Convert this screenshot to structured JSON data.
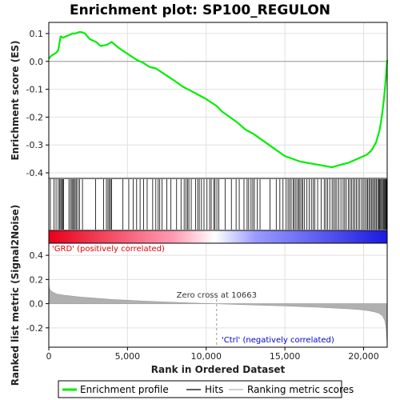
{
  "chart_data": {
    "type": "line",
    "title": "Enrichment plot: SP100_REGULON",
    "x_max": 21500,
    "xlabel": "Rank in Ordered Dataset",
    "x_ticks": [
      0,
      5000,
      10000,
      15000,
      20000
    ],
    "x_tick_labels": [
      "0",
      "5,000",
      "10,000",
      "15,000",
      "20,000"
    ],
    "top_panel": {
      "ylabel": "Enrichment score (ES)",
      "ylim": [
        -0.42,
        0.14
      ],
      "y_ticks": [
        0.1,
        0.0,
        -0.1,
        -0.2,
        -0.3,
        -0.4
      ],
      "y_tick_labels": [
        "0.1",
        "0.0",
        "-0.1",
        "-0.2",
        "-0.3",
        "-0.4"
      ],
      "series": [
        {
          "name": "Enrichment profile",
          "x": [
            0,
            150,
            300,
            450,
            600,
            750,
            900,
            1100,
            1300,
            1500,
            1700,
            1900,
            2100,
            2300,
            2600,
            3000,
            3300,
            3700,
            4000,
            4400,
            4800,
            5200,
            5600,
            6000,
            6400,
            6800,
            7200,
            7600,
            8000,
            8500,
            9000,
            9500,
            10000,
            10663,
            11000,
            11500,
            12000,
            12500,
            13000,
            13500,
            14000,
            14500,
            15000,
            15500,
            16000,
            16500,
            17000,
            17500,
            18000,
            18300,
            18600,
            19000,
            19400,
            19800,
            20200,
            20500,
            20800,
            21000,
            21100,
            21200,
            21300,
            21400,
            21450,
            21500
          ],
          "y": [
            0.01,
            0.02,
            0.025,
            0.03,
            0.04,
            0.09,
            0.085,
            0.09,
            0.095,
            0.1,
            0.1,
            0.105,
            0.105,
            0.1,
            0.08,
            0.07,
            0.055,
            0.06,
            0.07,
            0.05,
            0.035,
            0.02,
            0.005,
            -0.005,
            -0.02,
            -0.025,
            -0.04,
            -0.055,
            -0.07,
            -0.09,
            -0.105,
            -0.12,
            -0.135,
            -0.16,
            -0.18,
            -0.2,
            -0.22,
            -0.245,
            -0.26,
            -0.28,
            -0.3,
            -0.32,
            -0.34,
            -0.35,
            -0.36,
            -0.365,
            -0.37,
            -0.375,
            -0.38,
            -0.375,
            -0.37,
            -0.365,
            -0.355,
            -0.345,
            -0.335,
            -0.32,
            -0.29,
            -0.25,
            -0.22,
            -0.18,
            -0.13,
            -0.07,
            -0.03,
            0.005
          ]
        }
      ]
    },
    "hits_panel": {
      "hit_ranks": [
        100,
        330,
        460,
        600,
        690,
        760,
        820,
        880,
        940,
        1280,
        1380,
        1470,
        1530,
        1610,
        1680,
        1750,
        1860,
        1960,
        2140,
        2970,
        3480,
        3660,
        3760,
        3850,
        3920,
        3990,
        4710,
        5080,
        5360,
        5580,
        5800,
        6020,
        6250,
        6600,
        6800,
        6950,
        7050,
        7200,
        7500,
        7760,
        8120,
        8400,
        8600,
        8720,
        8820,
        8900,
        9050,
        9320,
        9460,
        9560,
        9700,
        9860,
        10050,
        10220,
        10320,
        10480,
        10560,
        10680,
        10800,
        11200,
        11600,
        11900,
        12100,
        12400,
        12600,
        12700,
        12850,
        12960,
        13060,
        13250,
        13420,
        14050,
        14450,
        14680,
        14880,
        15080,
        15200,
        15300,
        15400,
        15520,
        15600,
        15700,
        15800,
        15880,
        15960,
        16060,
        16140,
        16250,
        16400,
        16540,
        16680,
        16800,
        16900,
        17080,
        17300,
        17500,
        17600,
        17720,
        17850,
        18000,
        18100,
        18200,
        18300,
        18420,
        18560,
        18700,
        18800,
        18900,
        19040,
        19140,
        19240,
        19340,
        19440,
        19540,
        19660,
        19760,
        19880,
        19980,
        20080,
        20180,
        20260,
        20340,
        20420,
        20500,
        20580,
        20660,
        20740,
        20820,
        20900,
        20960,
        21020,
        21080,
        21140,
        21200,
        21260,
        21310,
        21360,
        21410,
        21450,
        21480
      ],
      "color_scale": [
        "#e8001a",
        "#ff9cb4",
        "#ffffff",
        "#9b9bff",
        "#1a1ae0"
      ]
    },
    "bottom_panel": {
      "ylabel": "Ranked list metric (Signal2Noise)",
      "ylim": [
        -0.36,
        0.5
      ],
      "y_ticks": [
        0.4,
        0.2,
        0.0,
        -0.2
      ],
      "y_tick_labels": [
        "0.4",
        "0.2",
        "0.0",
        "-0.2"
      ],
      "metric_x": [
        0,
        30,
        100,
        250,
        500,
        1000,
        2000,
        3000,
        4000,
        5000,
        6000,
        7000,
        8000,
        9000,
        10000,
        10663,
        11000,
        12000,
        13000,
        14000,
        15000,
        16000,
        17000,
        18000,
        19000,
        19800,
        20300,
        20700,
        21000,
        21200,
        21350,
        21430,
        21480,
        21500
      ],
      "metric_y": [
        0.17,
        0.13,
        0.11,
        0.095,
        0.08,
        0.07,
        0.055,
        0.045,
        0.035,
        0.028,
        0.022,
        0.016,
        0.011,
        0.006,
        0.002,
        0.0,
        -0.003,
        -0.007,
        -0.011,
        -0.015,
        -0.019,
        -0.024,
        -0.029,
        -0.035,
        -0.042,
        -0.05,
        -0.058,
        -0.068,
        -0.08,
        -0.1,
        -0.14,
        -0.2,
        -0.3,
        -0.34
      ],
      "zero_cross_rank": 10663,
      "zero_cross_label": "Zero cross at 10663",
      "pos_label": "'GRD' (positively correlated)",
      "neg_label": "'Ctrl' (negatively correlated)"
    },
    "legend": {
      "placement": "bottom",
      "entries": [
        "Enrichment profile",
        "Hits",
        "Ranking metric scores"
      ]
    },
    "colors": {
      "es_line": "#00ee00",
      "hit_line": "#000000",
      "metric_fill": "#b0b0b0",
      "pos_label": "#e00000",
      "neg_label": "#0000d0",
      "grid": "#e0e0e0"
    }
  }
}
